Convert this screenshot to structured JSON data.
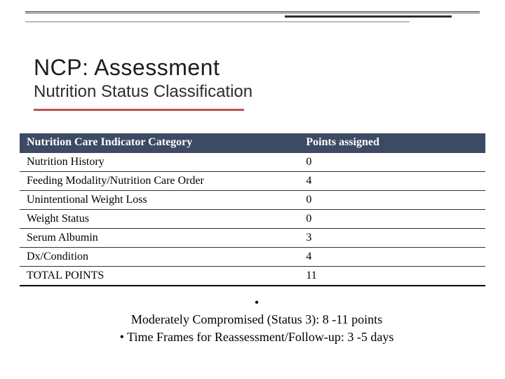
{
  "colors": {
    "header_bg": "#3c4a63",
    "header_text": "#ffffff",
    "accent_rule": "#c0504d",
    "body_text": "#000000",
    "row_border": "#333333"
  },
  "typography": {
    "title_font": "Verdana",
    "body_font": "Georgia",
    "title_size_pt": 24,
    "subtitle_size_pt": 18,
    "table_header_size_pt": 12,
    "table_cell_size_pt": 12,
    "footer_size_pt": 13
  },
  "title": {
    "main": "NCP: Assessment",
    "sub": "Nutrition Status Classification"
  },
  "table": {
    "type": "table",
    "columns": [
      "Nutrition Care Indicator Category",
      "Points assigned"
    ],
    "col_widths_pct": [
      60,
      40
    ],
    "header_bg": "#3c4a63",
    "header_text_color": "#ffffff",
    "row_border_color": "#333333",
    "rows": [
      {
        "category": "Nutrition History",
        "points": "0"
      },
      {
        "category": "Feeding Modality/Nutrition Care Order",
        "points": "4"
      },
      {
        "category": "Unintentional Weight Loss",
        "points": "0"
      },
      {
        "category": "Weight Status",
        "points": "0"
      },
      {
        "category": "Serum Albumin",
        "points": "3"
      },
      {
        "category": "Dx/Condition",
        "points": "4"
      },
      {
        "category": "TOTAL POINTS",
        "points": "11"
      }
    ]
  },
  "footer": {
    "bullet_glyph": "•",
    "line1": "Moderately Compromised (Status 3): 8 -11 points",
    "line2_bullet": "•",
    "line2": "Time Frames for Reassessment/Follow-up: 3 -5 days"
  }
}
